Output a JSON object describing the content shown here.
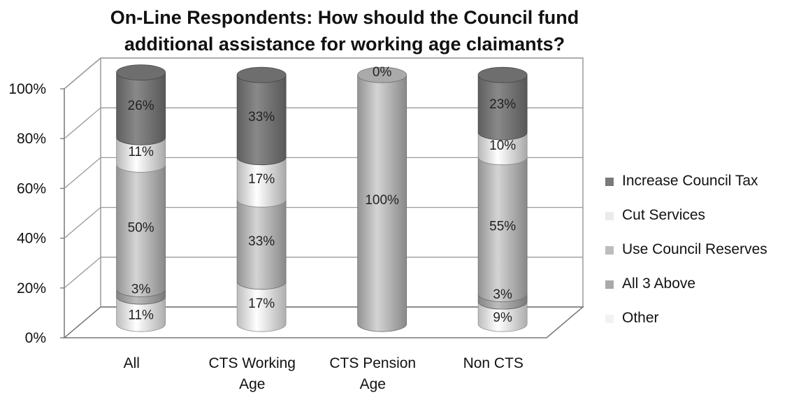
{
  "chart_data": {
    "type": "bar",
    "stacked": true,
    "style": "3d-cylinder",
    "title_lines": [
      "On-Line Respondents: How should the Council fund",
      "additional assistance for working age claimants?"
    ],
    "categories": [
      [
        "All"
      ],
      [
        "CTS Working",
        "Age"
      ],
      [
        "CTS Pension",
        "Age"
      ],
      [
        "Non CTS"
      ]
    ],
    "ylim": [
      0,
      100
    ],
    "yticks": [
      "0%",
      "20%",
      "40%",
      "60%",
      "80%",
      "100%"
    ],
    "grid": true,
    "legend_position": "right",
    "series": [
      {
        "name": "Other",
        "color": "#f2f2f2",
        "values": [
          11,
          17,
          0,
          9
        ],
        "labels": [
          "11%",
          "17%",
          "",
          "9%"
        ]
      },
      {
        "name": "All 3 Above",
        "color": "#a9a9a9",
        "values": [
          3,
          0,
          0,
          3
        ],
        "labels": [
          "3%",
          "",
          "",
          "3%"
        ]
      },
      {
        "name": "Use Council Reserves",
        "color": "#bdbdbd",
        "values": [
          50,
          33,
          100,
          55
        ],
        "labels": [
          "50%",
          "33%",
          "100%",
          "55%"
        ]
      },
      {
        "name": "Cut Services",
        "color": "#ebebeb",
        "values": [
          11,
          17,
          0,
          10
        ],
        "labels": [
          "11%",
          "17%",
          "",
          "10%"
        ]
      },
      {
        "name": "Increase Council Tax",
        "color": "#7a7a7a",
        "values": [
          26,
          33,
          0,
          23
        ],
        "labels": [
          "26%",
          "33%",
          "0%",
          "23%"
        ]
      }
    ],
    "legend_order": [
      "Increase Council Tax",
      "Cut Services",
      "Use Council Reserves",
      "All 3 Above",
      "Other"
    ]
  }
}
